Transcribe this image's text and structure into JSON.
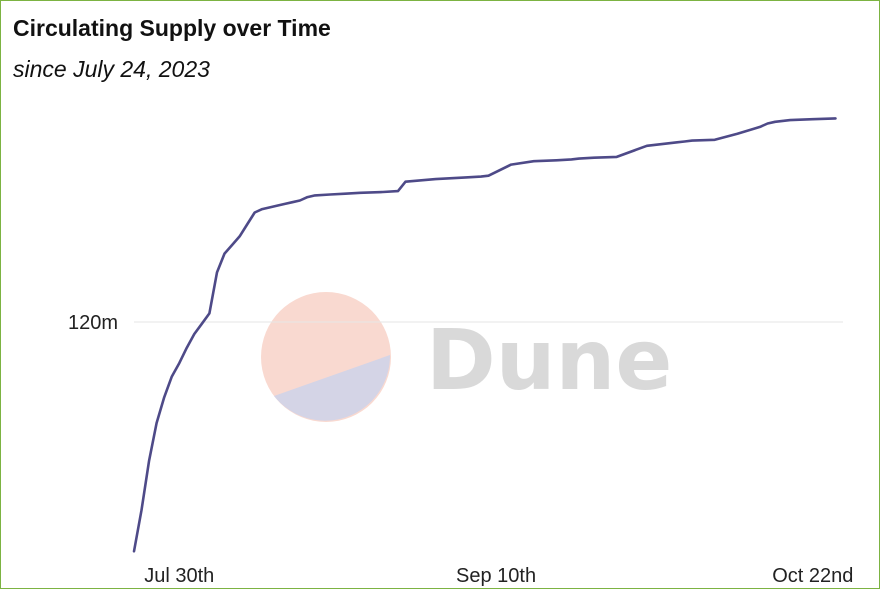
{
  "title": "Circulating Supply over Time",
  "subtitle": "since July 24, 2023",
  "watermark": {
    "text": "Dune",
    "top_color": "#f9d9d0",
    "bottom_color": "#d4d4e6"
  },
  "colors": {
    "line": "#4e4a88",
    "frame": "#7cb342",
    "grid": "#e6e6e6"
  },
  "chart_data": {
    "type": "line",
    "title": "Circulating Supply over Time",
    "subtitle": "since July 24, 2023",
    "xlabel": "",
    "ylabel": "",
    "x_tick_labels": [
      "Jul 30th",
      "Sep 10th",
      "Oct 22nd"
    ],
    "x_ticks": [
      "2023-07-30",
      "2023-09-10",
      "2023-10-22"
    ],
    "y_tick_labels": [
      "120m"
    ],
    "y_ticks": [
      120000000
    ],
    "xlim": [
      "2023-07-24",
      "2023-10-26"
    ],
    "ylim": [
      106500000,
      133500000
    ],
    "grid": true,
    "legend": "none",
    "series": [
      {
        "x": [
          "2023-07-24",
          "2023-07-25",
          "2023-07-26",
          "2023-07-27",
          "2023-07-28",
          "2023-07-29",
          "2023-07-30",
          "2023-07-31",
          "2023-08-01",
          "2023-08-02",
          "2023-08-03",
          "2023-08-04",
          "2023-08-05",
          "2023-08-06",
          "2023-08-07",
          "2023-08-08",
          "2023-08-09",
          "2023-08-10",
          "2023-08-11",
          "2023-08-12",
          "2023-08-13",
          "2023-08-14",
          "2023-08-15",
          "2023-08-16",
          "2023-08-17",
          "2023-08-19",
          "2023-08-21",
          "2023-08-23",
          "2023-08-26",
          "2023-08-28",
          "2023-08-29",
          "2023-09-02",
          "2023-09-06",
          "2023-09-08",
          "2023-09-09",
          "2023-09-12",
          "2023-09-15",
          "2023-09-18",
          "2023-09-20",
          "2023-09-21",
          "2023-09-23",
          "2023-09-26",
          "2023-09-30",
          "2023-10-04",
          "2023-10-05",
          "2023-10-06",
          "2023-10-09",
          "2023-10-12",
          "2023-10-15",
          "2023-10-16",
          "2023-10-17",
          "2023-10-19",
          "2023-10-22",
          "2023-10-25"
        ],
        "values": [
          106600000,
          109000000,
          111900000,
          114100000,
          115600000,
          116800000,
          117600000,
          118500000,
          119300000,
          119900000,
          120500000,
          122900000,
          124000000,
          124500000,
          125000000,
          125700000,
          126400000,
          126600000,
          126700000,
          126800000,
          126900000,
          127000000,
          127100000,
          127300000,
          127400000,
          127450000,
          127500000,
          127550000,
          127600000,
          127650000,
          128200000,
          128350000,
          128450000,
          128500000,
          128550000,
          129200000,
          129400000,
          129450000,
          129500000,
          129550000,
          129600000,
          129650000,
          130300000,
          130500000,
          130550000,
          130600000,
          130650000,
          131000000,
          131400000,
          131600000,
          131700000,
          131800000,
          131850000,
          131900000
        ]
      }
    ]
  }
}
